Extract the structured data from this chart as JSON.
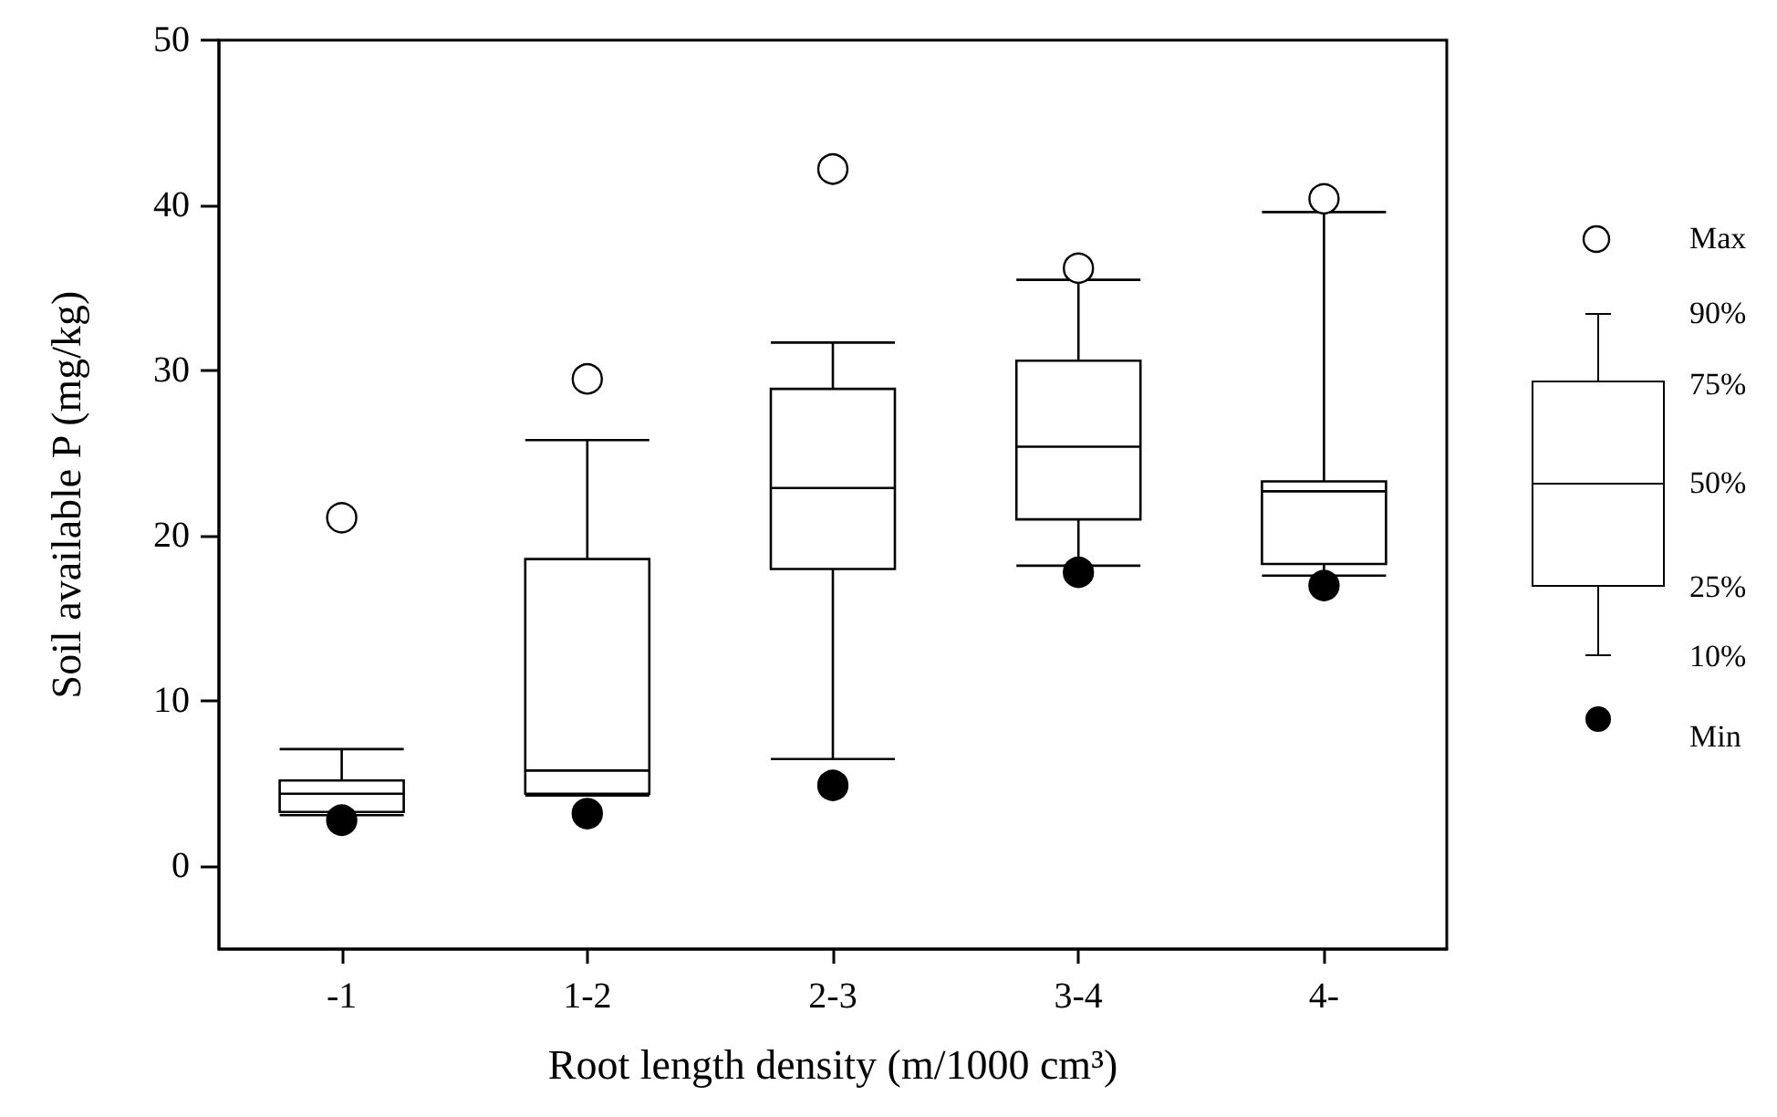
{
  "chart_data": {
    "type": "box",
    "xlabel": "Root length density (m/1000 cm³)",
    "ylabel": "Soil available P (mg/kg)",
    "categories": [
      "-1",
      "1-2",
      "2-3",
      "3-4",
      "4-"
    ],
    "boxes": [
      {
        "low": 3.1,
        "q1": 3.3,
        "median": 4.4,
        "q3": 5.2,
        "high": 7.1,
        "outliers": [
          21.1,
          2.8
        ]
      },
      {
        "low": 4.3,
        "q1": 4.4,
        "median": 5.8,
        "q3": 18.6,
        "high": 25.8,
        "outliers": [
          29.5,
          3.2
        ]
      },
      {
        "low": 6.5,
        "q1": 18.0,
        "median": 22.9,
        "q3": 28.9,
        "high": 31.7,
        "outliers": [
          42.2,
          4.9
        ]
      },
      {
        "low": 18.2,
        "q1": 21.0,
        "median": 25.4,
        "q3": 30.6,
        "high": 35.5,
        "outliers": [
          36.2,
          17.8
        ]
      },
      {
        "low": 17.6,
        "q1": 18.3,
        "median": 22.7,
        "q3": 23.3,
        "high": 39.6,
        "outliers": [
          40.4,
          17.0
        ]
      }
    ],
    "ylim": [
      -5,
      50
    ],
    "yticks": [
      0,
      10,
      20,
      30,
      40,
      50
    ],
    "annotations": [
      "Max",
      "90%",
      "75%",
      "50%",
      "25%",
      "10%",
      "Min"
    ]
  }
}
